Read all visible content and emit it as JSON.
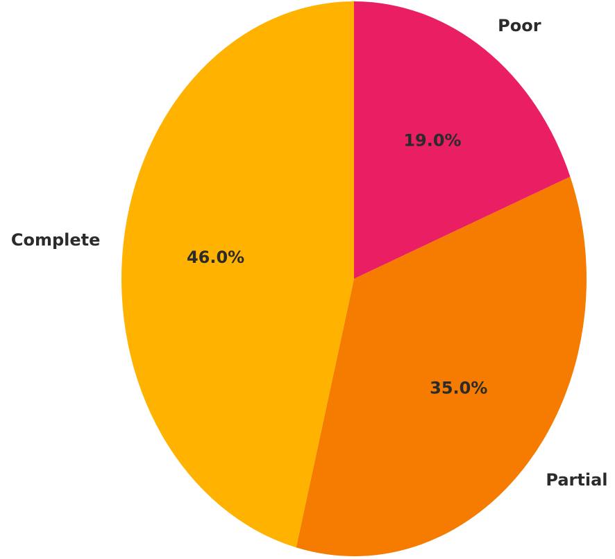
{
  "chart_data": {
    "type": "pie",
    "categories": [
      "Poor",
      "Partial",
      "Complete"
    ],
    "values": [
      19,
      35,
      46
    ],
    "value_labels": [
      "19.0%",
      "35.0%",
      "46.0%"
    ],
    "colors": [
      "#e91e63",
      "#f57c00",
      "#ffb300"
    ]
  }
}
